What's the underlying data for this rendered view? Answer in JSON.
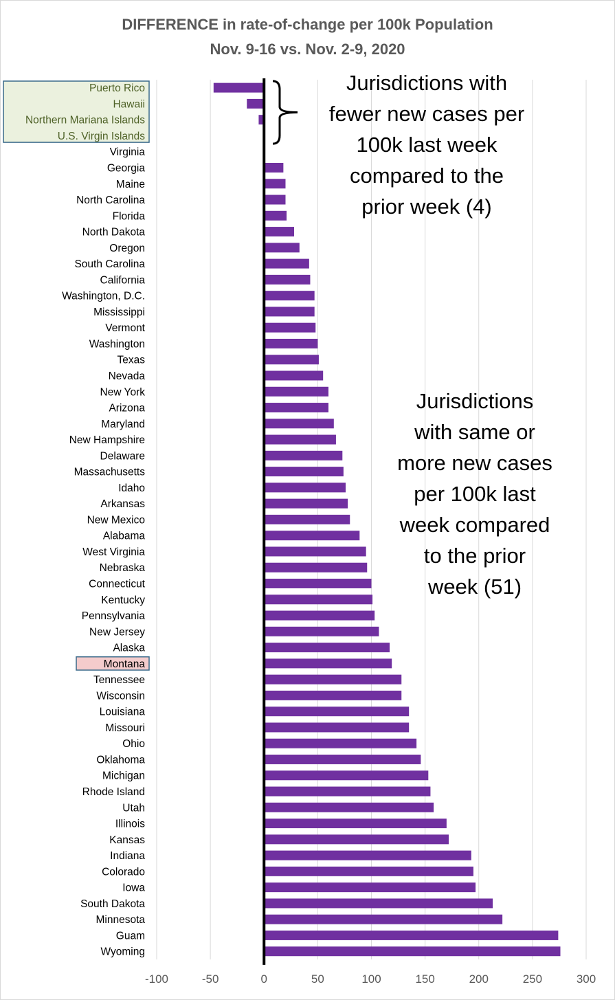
{
  "chart_data": {
    "type": "bar",
    "orientation": "horizontal",
    "title": "DIFFERENCE in rate-of-change per 100k Population",
    "subtitle": "Nov. 9-16 vs. Nov. 2-9, 2020",
    "xlim": [
      -100,
      300
    ],
    "xticks": [
      -100,
      -50,
      0,
      50,
      100,
      150,
      200,
      250,
      300
    ],
    "grid": "vertical",
    "bar_color": "#7030a0",
    "categories": [
      "Puerto Rico",
      "Hawaii",
      "Northern Mariana Islands",
      "U.S. Virgin Islands",
      "Virginia",
      "Georgia",
      "Maine",
      "North Carolina",
      "Florida",
      "North Dakota",
      "Oregon",
      "South Carolina",
      "California",
      "Washington, D.C.",
      "Mississippi",
      "Vermont",
      "Washington",
      "Texas",
      "Nevada",
      "New York",
      "Arizona",
      "Maryland",
      "New Hampshire",
      "Delaware",
      "Massachusetts",
      "Idaho",
      "Arkansas",
      "New Mexico",
      "Alabama",
      "West Virginia",
      "Nebraska",
      "Connecticut",
      "Kentucky",
      "Pennsylvania",
      "New Jersey",
      "Alaska",
      "Montana",
      "Tennessee",
      "Wisconsin",
      "Louisiana",
      "Missouri",
      "Ohio",
      "Oklahoma",
      "Michigan",
      "Rhode Island",
      "Utah",
      "Illinois",
      "Kansas",
      "Indiana",
      "Colorado",
      "Iowa",
      "South Dakota",
      "Minnesota",
      "Guam",
      "Wyoming"
    ],
    "values": [
      -47,
      -16,
      -5,
      -1,
      0,
      18,
      20,
      20,
      21,
      28,
      33,
      42,
      43,
      47,
      47,
      48,
      50,
      51,
      55,
      60,
      60,
      65,
      67,
      73,
      74,
      76,
      78,
      80,
      89,
      95,
      96,
      100,
      101,
      103,
      107,
      117,
      119,
      128,
      128,
      135,
      135,
      142,
      146,
      153,
      155,
      158,
      170,
      172,
      193,
      195,
      197,
      213,
      222,
      274,
      276
    ],
    "highlight_groups": [
      {
        "categories": [
          "Puerto Rico",
          "Hawaii",
          "Northern Mariana Islands",
          "U.S. Virgin Islands"
        ],
        "fill": "#ebf1de",
        "border": "#3a6a8a",
        "text_color": "#4f6228"
      },
      {
        "categories": [
          "Montana"
        ],
        "fill": "#f4cccc",
        "border": "#3a6a8a",
        "text_color": "#000000"
      }
    ],
    "annotations": [
      "Jurisdictions with\nfewer new cases per\n100k last week\ncompared to the\nprior week (4)",
      "Jurisdictions\nwith same or\nmore new cases\nper 100k last\nweek compared\nto the prior\nweek (51)"
    ]
  }
}
